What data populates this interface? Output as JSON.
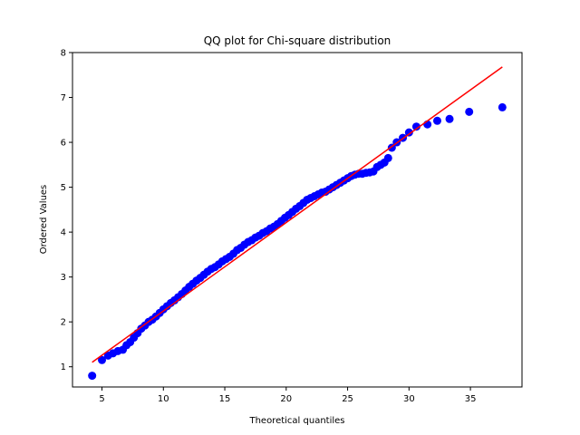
{
  "chart_data": {
    "type": "scatter",
    "title": "QQ plot for Chi-square distribution",
    "xlabel": "Theoretical quantiles",
    "ylabel": "Ordered Values",
    "xlim": [
      2.6,
      39.2
    ],
    "ylim": [
      0.55,
      8.0
    ],
    "xticks": [
      5,
      10,
      15,
      20,
      25,
      30,
      35
    ],
    "yticks": [
      1,
      2,
      3,
      4,
      5,
      6,
      7,
      8
    ],
    "grid": false,
    "colors": {
      "points": "#0000ff",
      "fit_line": "#ff0000"
    },
    "fit_line": {
      "x": [
        4.2,
        37.6
      ],
      "y": [
        1.1,
        7.68
      ]
    },
    "series": [
      {
        "type": "scatter",
        "x": [
          4.2,
          5.0,
          5.5,
          5.9,
          6.3,
          6.7,
          7.0,
          7.3,
          7.6,
          7.9,
          8.2,
          8.5,
          8.8,
          9.1,
          9.4,
          9.7,
          10.0,
          10.3,
          10.6,
          10.9,
          11.2,
          11.5,
          11.8,
          12.1,
          12.4,
          12.7,
          13.0,
          13.3,
          13.6,
          13.9,
          14.2,
          14.5,
          14.8,
          15.1,
          15.4,
          15.7,
          16.0,
          16.3,
          16.6,
          16.9,
          17.2,
          17.5,
          17.8,
          18.1,
          18.4,
          18.7,
          19.0,
          19.3,
          19.6,
          19.9,
          20.2,
          20.5,
          20.8,
          21.1,
          21.4,
          21.7,
          22.0,
          22.3,
          22.6,
          22.9,
          23.2,
          23.5,
          23.8,
          24.1,
          24.4,
          24.7,
          25.0,
          25.3,
          25.6,
          25.9,
          26.2,
          26.5,
          26.8,
          27.1,
          27.4,
          27.7,
          28.0,
          28.3,
          28.6,
          29.0,
          29.5,
          30.0,
          30.6,
          31.5,
          32.3,
          33.3,
          34.9,
          37.6
        ],
        "y": [
          0.8,
          1.15,
          1.25,
          1.3,
          1.35,
          1.38,
          1.48,
          1.55,
          1.65,
          1.75,
          1.85,
          1.92,
          2.0,
          2.05,
          2.12,
          2.2,
          2.28,
          2.35,
          2.42,
          2.48,
          2.55,
          2.62,
          2.7,
          2.78,
          2.85,
          2.92,
          2.98,
          3.05,
          3.12,
          3.18,
          3.22,
          3.28,
          3.35,
          3.4,
          3.45,
          3.52,
          3.6,
          3.65,
          3.72,
          3.78,
          3.82,
          3.88,
          3.92,
          3.98,
          4.02,
          4.08,
          4.12,
          4.18,
          4.25,
          4.32,
          4.38,
          4.45,
          4.52,
          4.58,
          4.65,
          4.72,
          4.76,
          4.8,
          4.84,
          4.88,
          4.9,
          4.95,
          5.0,
          5.05,
          5.1,
          5.15,
          5.2,
          5.25,
          5.28,
          5.3,
          5.3,
          5.32,
          5.33,
          5.35,
          5.45,
          5.5,
          5.55,
          5.65,
          5.88,
          6.0,
          6.1,
          6.22,
          6.35,
          6.4,
          6.48,
          6.52,
          6.68,
          6.78
        ]
      }
    ]
  }
}
